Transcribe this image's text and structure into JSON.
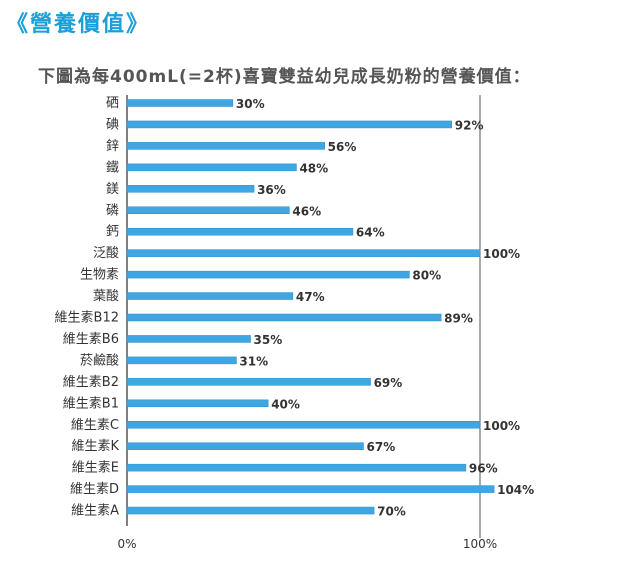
{
  "heading": "《營養價值》",
  "subtitle": "下圖為每400mL(=2杯)喜寶雙益幼兒成長奶粉的營養價值：",
  "colors": {
    "heading": "#1a9fd8",
    "bar": "#3ea6e2",
    "bar_dark": "#2a8ccc",
    "axis": "#555555"
  },
  "chart_data": {
    "type": "bar",
    "orientation": "horizontal",
    "categories": [
      "硒",
      "碘",
      "鋅",
      "鐵",
      "鎂",
      "磷",
      "鈣",
      "泛酸",
      "生物素",
      "葉酸",
      "維生素B12",
      "維生素B6",
      "菸鹼酸",
      "維生素B2",
      "維生素B1",
      "維生素C",
      "維生素K",
      "維生素E",
      "維生素D",
      "維生素A"
    ],
    "values": [
      30,
      92,
      56,
      48,
      36,
      46,
      64,
      100,
      80,
      47,
      89,
      35,
      31,
      69,
      40,
      100,
      67,
      96,
      104,
      70
    ],
    "value_labels": [
      "30%",
      "92%",
      "56%",
      "48%",
      "36%",
      "46%",
      "64%",
      "100%",
      "80%",
      "47%",
      "89%",
      "35%",
      "31%",
      "69%",
      "40%",
      "100%",
      "67%",
      "96%",
      "104%",
      "70%"
    ],
    "x_ticks": [
      "0%",
      "100%"
    ],
    "xlim": [
      0,
      140
    ],
    "reference_line": 100,
    "grid": false,
    "legend": "none"
  }
}
